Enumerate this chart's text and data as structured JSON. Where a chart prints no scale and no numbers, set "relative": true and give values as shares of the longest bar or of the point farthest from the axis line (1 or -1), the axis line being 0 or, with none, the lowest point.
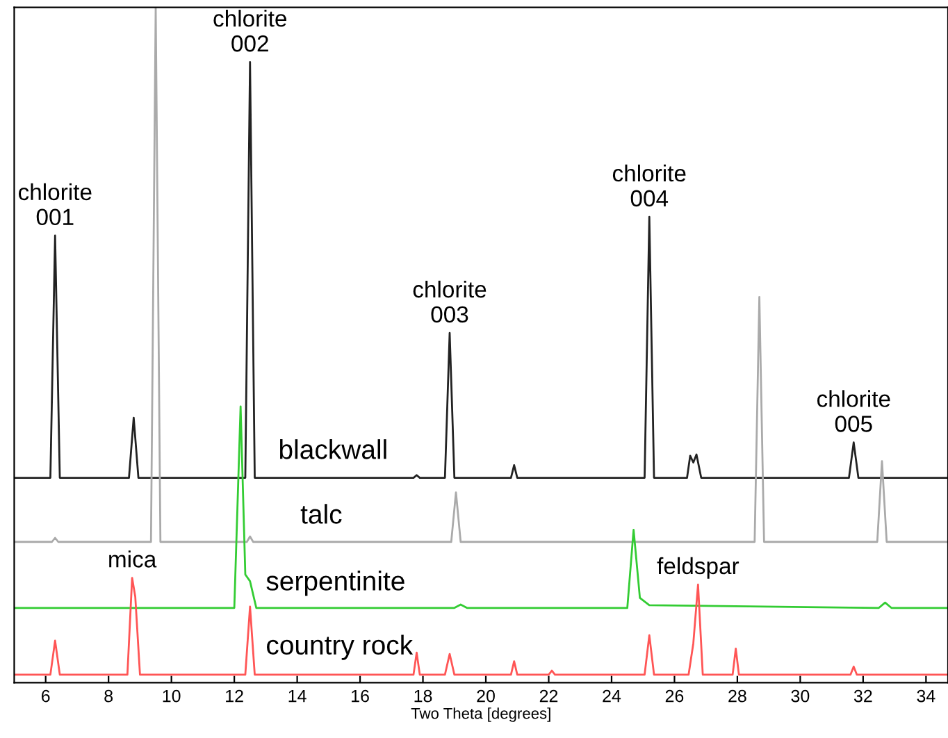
{
  "chart_data": {
    "type": "line",
    "relative": true,
    "xlabel": "Two Theta [degrees]",
    "xlim": [
      5.0,
      34.7
    ],
    "xticks": [
      6,
      8,
      10,
      12,
      14,
      16,
      18,
      20,
      22,
      24,
      26,
      28,
      30,
      32,
      34
    ],
    "tick_labels": "x",
    "grid": false,
    "legend": false,
    "marker": "none",
    "line_style": "solid",
    "series": [
      {
        "name": "blackwall",
        "color": "#222222",
        "x": [
          5.0,
          6.15,
          6.3,
          6.45,
          8.65,
          8.8,
          8.95,
          12.35,
          12.5,
          12.65,
          17.7,
          17.8,
          17.9,
          18.7,
          18.85,
          19.0,
          20.8,
          20.9,
          21.0,
          25.05,
          25.2,
          25.35,
          26.4,
          26.5,
          26.6,
          26.7,
          26.85,
          31.55,
          31.7,
          31.85,
          34.7
        ],
        "values": [
          0.295,
          0.295,
          0.658,
          0.295,
          0.295,
          0.385,
          0.295,
          0.295,
          0.918,
          0.295,
          0.295,
          0.299,
          0.295,
          0.295,
          0.512,
          0.295,
          0.295,
          0.314,
          0.295,
          0.295,
          0.686,
          0.295,
          0.295,
          0.328,
          0.318,
          0.33,
          0.295,
          0.295,
          0.348,
          0.295,
          0.295
        ]
      },
      {
        "name": "talc",
        "color": "#aaaaaa",
        "x": [
          5.0,
          6.2,
          6.3,
          6.4,
          9.35,
          9.5,
          9.65,
          12.4,
          12.5,
          12.6,
          18.9,
          19.05,
          19.2,
          28.55,
          28.7,
          28.85,
          32.45,
          32.6,
          32.75,
          34.7
        ],
        "values": [
          0.199,
          0.199,
          0.205,
          0.199,
          0.199,
          1.0,
          0.199,
          0.199,
          0.207,
          0.199,
          0.199,
          0.273,
          0.199,
          0.199,
          0.566,
          0.199,
          0.199,
          0.32,
          0.199,
          0.199
        ]
      },
      {
        "name": "serpentinite",
        "color": "#33cc33",
        "x": [
          5.0,
          12.0,
          12.2,
          12.35,
          12.5,
          12.7,
          19.0,
          19.2,
          19.4,
          24.5,
          24.7,
          24.9,
          25.2,
          32.5,
          32.7,
          32.9,
          34.7
        ],
        "values": [
          0.1,
          0.1,
          0.402,
          0.15,
          0.14,
          0.1,
          0.1,
          0.105,
          0.1,
          0.1,
          0.217,
          0.115,
          0.104,
          0.1,
          0.108,
          0.1,
          0.1
        ]
      },
      {
        "name": "country rock",
        "color": "#ff5555",
        "x": [
          5.0,
          6.15,
          6.3,
          6.45,
          8.6,
          8.75,
          8.85,
          9.0,
          12.35,
          12.5,
          12.65,
          17.7,
          17.8,
          17.9,
          18.7,
          18.85,
          19.0,
          20.8,
          20.9,
          21.0,
          22.0,
          22.1,
          22.2,
          25.05,
          25.2,
          25.35,
          26.45,
          26.6,
          26.75,
          26.9,
          27.85,
          27.95,
          28.05,
          31.6,
          31.7,
          31.8,
          34.7
        ],
        "values": [
          0,
          0,
          0.051,
          0,
          0,
          0.145,
          0.117,
          0,
          0,
          0.102,
          0,
          0,
          0.033,
          0,
          0,
          0.031,
          0,
          0,
          0.02,
          0,
          0,
          0.006,
          0,
          0,
          0.059,
          0,
          0,
          0.047,
          0.135,
          0,
          0,
          0.039,
          0,
          0,
          0.012,
          0,
          0
        ]
      }
    ],
    "annotations": [
      {
        "text": "chlorite\n001",
        "x": 6.3,
        "y": 0.658
      },
      {
        "text": "chlorite\n002",
        "x": 12.5,
        "y": 0.918
      },
      {
        "text": "chlorite\n003",
        "x": 18.85,
        "y": 0.512
      },
      {
        "text": "chlorite\n004",
        "x": 25.2,
        "y": 0.686
      },
      {
        "text": "chlorite\n005",
        "x": 31.7,
        "y": 0.348
      },
      {
        "text": "mica",
        "x": 8.75,
        "y": 0.145
      },
      {
        "text": "feldspar",
        "x": 26.75,
        "y": 0.135
      }
    ]
  }
}
